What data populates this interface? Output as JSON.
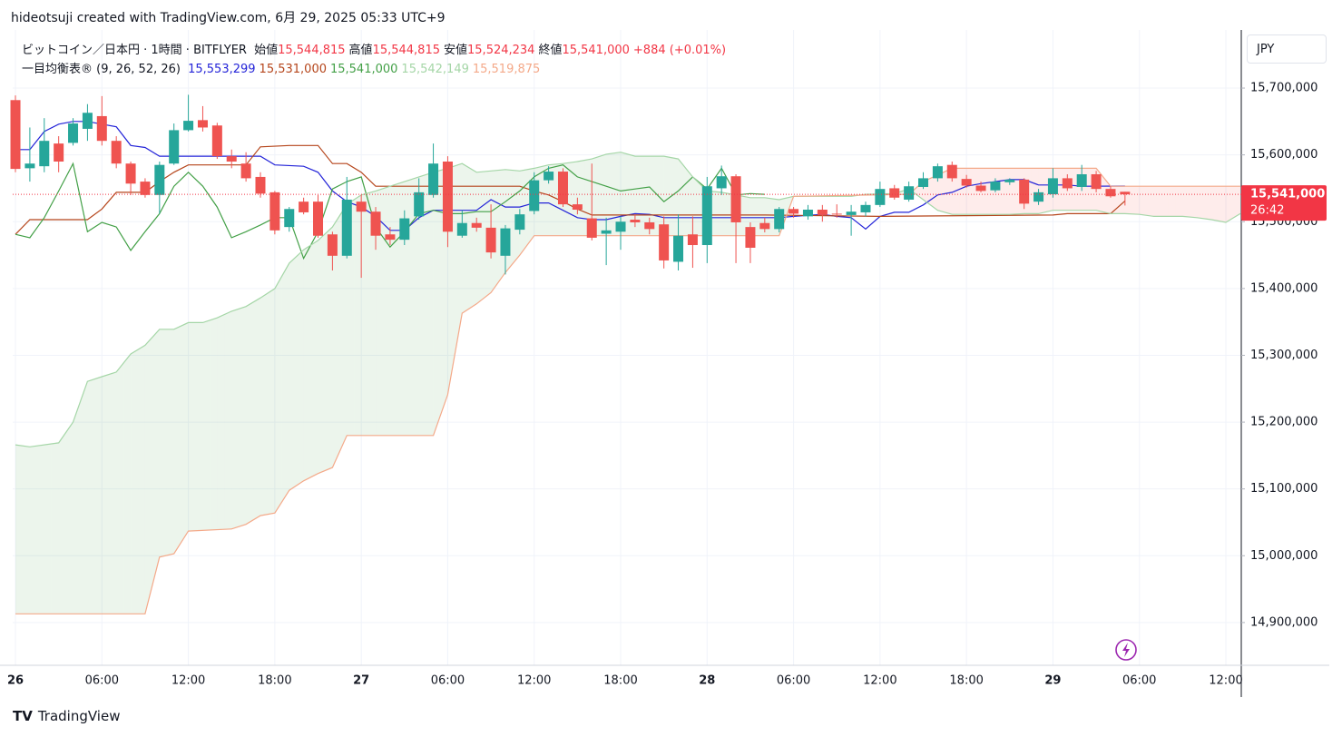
{
  "header": "hideotsuji created with TradingView.com, 6月 29, 2025 05:33 UTC+9",
  "currency": "JPY",
  "footer": "TradingView",
  "legend": {
    "symbol": "ビットコイン／日本円 · 1時間 · BITFLYER",
    "ohlc": [
      {
        "label": "始値",
        "value": "15,544,815"
      },
      {
        "label": "高値",
        "value": "15,544,815"
      },
      {
        "label": "安値",
        "value": "15,524,234"
      },
      {
        "label": "終値",
        "value": "15,541,000"
      }
    ],
    "change": "+884 (+0.01%)",
    "indicator": "一目均衡表® (9, 26, 52, 26)"
  },
  "chart_data": {
    "type": "candlestick",
    "xlim": [
      -0.19,
      85.07
    ],
    "xticks": [
      {
        "value": 0,
        "label": "26"
      },
      {
        "value": 6,
        "label": "06:00"
      },
      {
        "value": 12,
        "label": "12:00"
      },
      {
        "value": 18,
        "label": "18:00"
      },
      {
        "value": 24,
        "label": "27"
      },
      {
        "value": 30,
        "label": "06:00"
      },
      {
        "value": 36,
        "label": "12:00"
      },
      {
        "value": 42,
        "label": "18:00"
      },
      {
        "value": 48,
        "label": "28"
      },
      {
        "value": 54,
        "label": "06:00"
      },
      {
        "value": 60,
        "label": "12:00"
      },
      {
        "value": 66,
        "label": "18:00"
      },
      {
        "value": 72,
        "label": "29"
      },
      {
        "value": 78,
        "label": "06:00"
      },
      {
        "value": 84,
        "label": "12:00"
      }
    ],
    "ylim": [
      14836000,
      15787000
    ],
    "yticks": [
      {
        "value": 14900000,
        "label": "14,900,000"
      },
      {
        "value": 15000000,
        "label": "15,000,000"
      },
      {
        "value": 15100000,
        "label": "15,100,000"
      },
      {
        "value": 15200000,
        "label": "15,200,000"
      },
      {
        "value": 15300000,
        "label": "15,300,000"
      },
      {
        "value": 15400000,
        "label": "15,400,000"
      },
      {
        "value": 15500000,
        "label": "15,500,000"
      },
      {
        "value": 15600000,
        "label": "15,600,000"
      },
      {
        "value": 15700000,
        "label": "15,700,000"
      }
    ],
    "grid": true,
    "up_color": "#26a69a",
    "down_color": "#ef5350",
    "candles": {
      "x": [
        0,
        1,
        2,
        3,
        4,
        5,
        6,
        7,
        8,
        9,
        10,
        11,
        12,
        13,
        14,
        15,
        16,
        17,
        18,
        19,
        20,
        21,
        22,
        23,
        24,
        25,
        26,
        27,
        28,
        29,
        30,
        31,
        32,
        33,
        34,
        35,
        36,
        37,
        38,
        39,
        40,
        41,
        42,
        43,
        44,
        45,
        46,
        47,
        48,
        49,
        50,
        51,
        52,
        53,
        54,
        55,
        56,
        57,
        58,
        59,
        60,
        61,
        62,
        63,
        64,
        65,
        66,
        67,
        68,
        69,
        70,
        71,
        72,
        73,
        74,
        75,
        76,
        77
      ],
      "open": [
        15682000,
        15580000,
        15583000,
        15617000,
        15618000,
        15639000,
        15658000,
        15621000,
        15587000,
        15560000,
        15540000,
        15587000,
        15637000,
        15652000,
        15644000,
        15598000,
        15587000,
        15567000,
        15544000,
        15492000,
        15530000,
        15530000,
        15481000,
        15449000,
        15530000,
        15515000,
        15481000,
        15473000,
        15508000,
        15540000,
        15590000,
        15479000,
        15498000,
        15491000,
        15449000,
        15488000,
        15516000,
        15562000,
        15575000,
        15526000,
        15505000,
        15482000,
        15485000,
        15503000,
        15499000,
        15496000,
        15440000,
        15481000,
        15465000,
        15550000,
        15568000,
        15492000,
        15498000,
        15489000,
        15519000,
        15508000,
        15518000,
        15512000,
        15510000,
        15514000,
        15525000,
        15550000,
        15533000,
        15552000,
        15565000,
        15585000,
        15564000,
        15554000,
        15547000,
        15559000,
        15563000,
        15530000,
        15541000,
        15565000,
        15552000,
        15571000,
        15549000,
        15544815
      ],
      "high": [
        15689000,
        15641000,
        15655000,
        15628000,
        15655000,
        15676000,
        15688000,
        15628000,
        15590000,
        15565000,
        15590000,
        15647000,
        15690000,
        15673000,
        15648000,
        15608000,
        15604000,
        15574000,
        15546000,
        15522000,
        15536000,
        15540000,
        15485000,
        15567000,
        15540000,
        15522000,
        15492000,
        15517000,
        15565000,
        15617000,
        15598000,
        15517000,
        15506000,
        15526000,
        15495000,
        15519000,
        15574000,
        15583000,
        15580000,
        15536000,
        15587000,
        15506000,
        15508000,
        15511000,
        15506000,
        15508000,
        15511000,
        15508000,
        15567000,
        15584000,
        15571000,
        15499000,
        15506000,
        15522000,
        15522000,
        15525000,
        15525000,
        15526000,
        15525000,
        15530000,
        15560000,
        15555000,
        15560000,
        15574000,
        15587000,
        15590000,
        15570000,
        15560000,
        15565000,
        15565000,
        15565000,
        15549000,
        15580000,
        15571000,
        15585000,
        15576000,
        15553000,
        15544815
      ],
      "low": [
        15574000,
        15560000,
        15574000,
        15574000,
        15614000,
        15621000,
        15614000,
        15580000,
        15540000,
        15536000,
        15512000,
        15585000,
        15635000,
        15635000,
        15594000,
        15580000,
        15560000,
        15536000,
        15481000,
        15485000,
        15511000,
        15476000,
        15427000,
        15445000,
        15416000,
        15458000,
        15465000,
        15465000,
        15503000,
        15536000,
        15462000,
        15476000,
        15485000,
        15445000,
        15421000,
        15481000,
        15511000,
        15557000,
        15522000,
        15511000,
        15472000,
        15435000,
        15458000,
        15492000,
        15481000,
        15430000,
        15427000,
        15431000,
        15438000,
        15540000,
        15438000,
        15438000,
        15484000,
        15484000,
        15506000,
        15503000,
        15500000,
        15506000,
        15479000,
        15508000,
        15522000,
        15533000,
        15530000,
        15549000,
        15560000,
        15560000,
        15551000,
        15544000,
        15544000,
        15555000,
        15519000,
        15525000,
        15536000,
        15546000,
        15546000,
        15544000,
        15536000,
        15524234
      ],
      "close": [
        15579000,
        15587000,
        15621000,
        15590000,
        15647000,
        15663000,
        15621000,
        15587000,
        15557000,
        15540000,
        15585000,
        15637000,
        15651000,
        15641000,
        15598000,
        15590000,
        15565000,
        15542000,
        15487000,
        15519000,
        15514000,
        15479000,
        15449000,
        15533000,
        15515000,
        15479000,
        15473000,
        15505000,
        15544000,
        15587000,
        15485000,
        15498000,
        15491000,
        15454000,
        15490000,
        15511000,
        15562000,
        15575000,
        15526000,
        15518000,
        15476000,
        15487000,
        15500000,
        15499000,
        15489000,
        15442000,
        15479000,
        15465000,
        15553000,
        15568000,
        15499000,
        15461000,
        15489000,
        15519000,
        15512000,
        15518000,
        15510000,
        15511000,
        15515000,
        15525000,
        15549000,
        15536000,
        15553000,
        15565000,
        15583000,
        15565000,
        15554000,
        15546000,
        15560000,
        15563000,
        15527000,
        15544000,
        15565000,
        15550000,
        15571000,
        15549000,
        15538000,
        15541000
      ]
    },
    "series": [
      {
        "color": "#2424d8",
        "legend_value": "15,553,299",
        "x": [
          0,
          1,
          2,
          3,
          4,
          5,
          6,
          7,
          8,
          9,
          10,
          17,
          18,
          20,
          21,
          22,
          23,
          24,
          25,
          26,
          27,
          28,
          29,
          32,
          33,
          34,
          35,
          36,
          37,
          38,
          39,
          40,
          41,
          42,
          43,
          44,
          45,
          53,
          54,
          56,
          57,
          58,
          59,
          60,
          61,
          62,
          63,
          64,
          65,
          66,
          67,
          68,
          69,
          70,
          71,
          73,
          74,
          77
        ],
        "values": [
          15608000,
          15608000,
          15635000,
          15646000,
          15650000,
          15650000,
          15646000,
          15642000,
          15614000,
          15611000,
          15598000,
          15598000,
          15585000,
          15583000,
          15574000,
          15546000,
          15530000,
          15522000,
          15508000,
          15487000,
          15487000,
          15506000,
          15517000,
          15517000,
          15533000,
          15522000,
          15522000,
          15528000,
          15528000,
          15517000,
          15506000,
          15503000,
          15503000,
          15508000,
          15512000,
          15511000,
          15506000,
          15506000,
          15508000,
          15511000,
          15508000,
          15506000,
          15489000,
          15508000,
          15514000,
          15514000,
          15525000,
          15540000,
          15544000,
          15553000,
          15557000,
          15560000,
          15563000,
          15563000,
          15555000,
          15555000,
          15553000,
          15553299
        ]
      },
      {
        "color": "#b5451b",
        "legend_value": "15,531,000",
        "x": [
          0,
          1,
          5,
          6,
          7,
          9,
          10,
          11,
          12,
          16,
          17,
          19,
          21,
          22,
          23,
          24,
          25,
          35,
          36,
          37,
          38,
          39,
          40,
          52,
          60,
          72,
          73,
          76,
          77
        ],
        "values": [
          15481000,
          15503000,
          15503000,
          15519000,
          15544000,
          15544000,
          15560000,
          15574000,
          15585000,
          15585000,
          15612000,
          15614000,
          15614000,
          15587000,
          15587000,
          15574000,
          15553000,
          15553000,
          15546000,
          15540000,
          15530000,
          15519000,
          15510000,
          15510000,
          15508000,
          15510000,
          15512000,
          15512000,
          15531000
        ]
      },
      {
        "color": "#43a047",
        "legend_value": "15,541,000",
        "x": [
          0,
          1,
          2,
          3,
          4,
          5,
          6,
          7,
          8,
          9,
          10,
          11,
          12,
          13,
          14,
          15,
          16,
          17,
          18,
          19,
          20,
          21,
          22,
          23,
          24,
          25,
          26,
          27,
          28,
          29,
          30,
          31,
          32,
          33,
          34,
          35,
          36,
          37,
          38,
          39,
          40,
          41,
          42,
          43,
          44,
          45,
          46,
          47,
          48,
          49,
          50,
          51,
          52
        ],
        "values": [
          15481000,
          15476000,
          15506000,
          15546000,
          15587000,
          15485000,
          15499000,
          15492000,
          15457000,
          15485000,
          15512000,
          15553000,
          15574000,
          15553000,
          15522000,
          15476000,
          15485000,
          15495000,
          15506000,
          15506000,
          15445000,
          15485000,
          15549000,
          15560000,
          15567000,
          15492000,
          15462000,
          15485000,
          15512000,
          15517000,
          15512000,
          15512000,
          15515000,
          15515000,
          15530000,
          15546000,
          15567000,
          15580000,
          15585000,
          15567000,
          15560000,
          15553000,
          15546000,
          15549000,
          15552000,
          15530000,
          15546000,
          15567000,
          15549000,
          15580000,
          15540000,
          15542000,
          15541000
        ]
      },
      {
        "color": "#a5d6a7",
        "legend_value": "15,542,149",
        "x": [
          0,
          1,
          3,
          4,
          5,
          6,
          7,
          8,
          9,
          10,
          11,
          12,
          13,
          14,
          15,
          16,
          17,
          18,
          19,
          20,
          21,
          22,
          23,
          24,
          25,
          26,
          27,
          28,
          29,
          30,
          31,
          32,
          33,
          34,
          35,
          36,
          37,
          38,
          39,
          40,
          41,
          42,
          43,
          45,
          46,
          47,
          48,
          49,
          50,
          51,
          52,
          53,
          54,
          58,
          59,
          61,
          62,
          63,
          64,
          65,
          69,
          70,
          71,
          72,
          75,
          76,
          77,
          78,
          79,
          81,
          82,
          83,
          84,
          85
        ],
        "values": [
          15166000,
          15163000,
          15169000,
          15200000,
          15261000,
          15268000,
          15275000,
          15302000,
          15315000,
          15339000,
          15339000,
          15349000,
          15349000,
          15356000,
          15366000,
          15373000,
          15386000,
          15400000,
          15438000,
          15458000,
          15472000,
          15492000,
          15526000,
          15540000,
          15546000,
          15553000,
          15560000,
          15567000,
          15574000,
          15580000,
          15587000,
          15574000,
          15576000,
          15578000,
          15576000,
          15580000,
          15585000,
          15587000,
          15590000,
          15594000,
          15601000,
          15604000,
          15598000,
          15598000,
          15594000,
          15567000,
          15546000,
          15544000,
          15540000,
          15536000,
          15536000,
          15533000,
          15538000,
          15538000,
          15541000,
          15542000,
          15549000,
          15533000,
          15517000,
          15511000,
          15511000,
          15512000,
          15512000,
          15517000,
          15517000,
          15512000,
          15512000,
          15511000,
          15508000,
          15508000,
          15506000,
          15503000,
          15499000,
          15512000
        ]
      },
      {
        "color": "#f4a989",
        "legend_value": "15,519,875",
        "x": [
          0,
          9,
          10,
          11,
          12,
          15,
          16,
          17,
          18,
          19,
          20,
          21,
          22,
          23,
          29,
          30,
          31,
          32,
          33,
          34,
          35,
          36,
          53,
          54,
          62,
          63,
          65,
          75,
          76,
          85
        ],
        "values": [
          14913000,
          14913000,
          14998000,
          15003000,
          15037000,
          15040000,
          15047000,
          15060000,
          15064000,
          15098000,
          15112000,
          15123000,
          15132000,
          15180000,
          15180000,
          15241000,
          15363000,
          15377000,
          15394000,
          15424000,
          15450000,
          15479000,
          15479000,
          15538000,
          15541000,
          15560000,
          15580000,
          15580000,
          15553000,
          15553000
        ]
      }
    ],
    "cloud_up_color": "rgba(67,160,71,0.10)",
    "cloud_down_color": "rgba(244,67,54,0.10)",
    "price_line": {
      "value": 15541000,
      "label": "15,541,000",
      "countdown": "26:42",
      "color": "#f23645"
    }
  }
}
